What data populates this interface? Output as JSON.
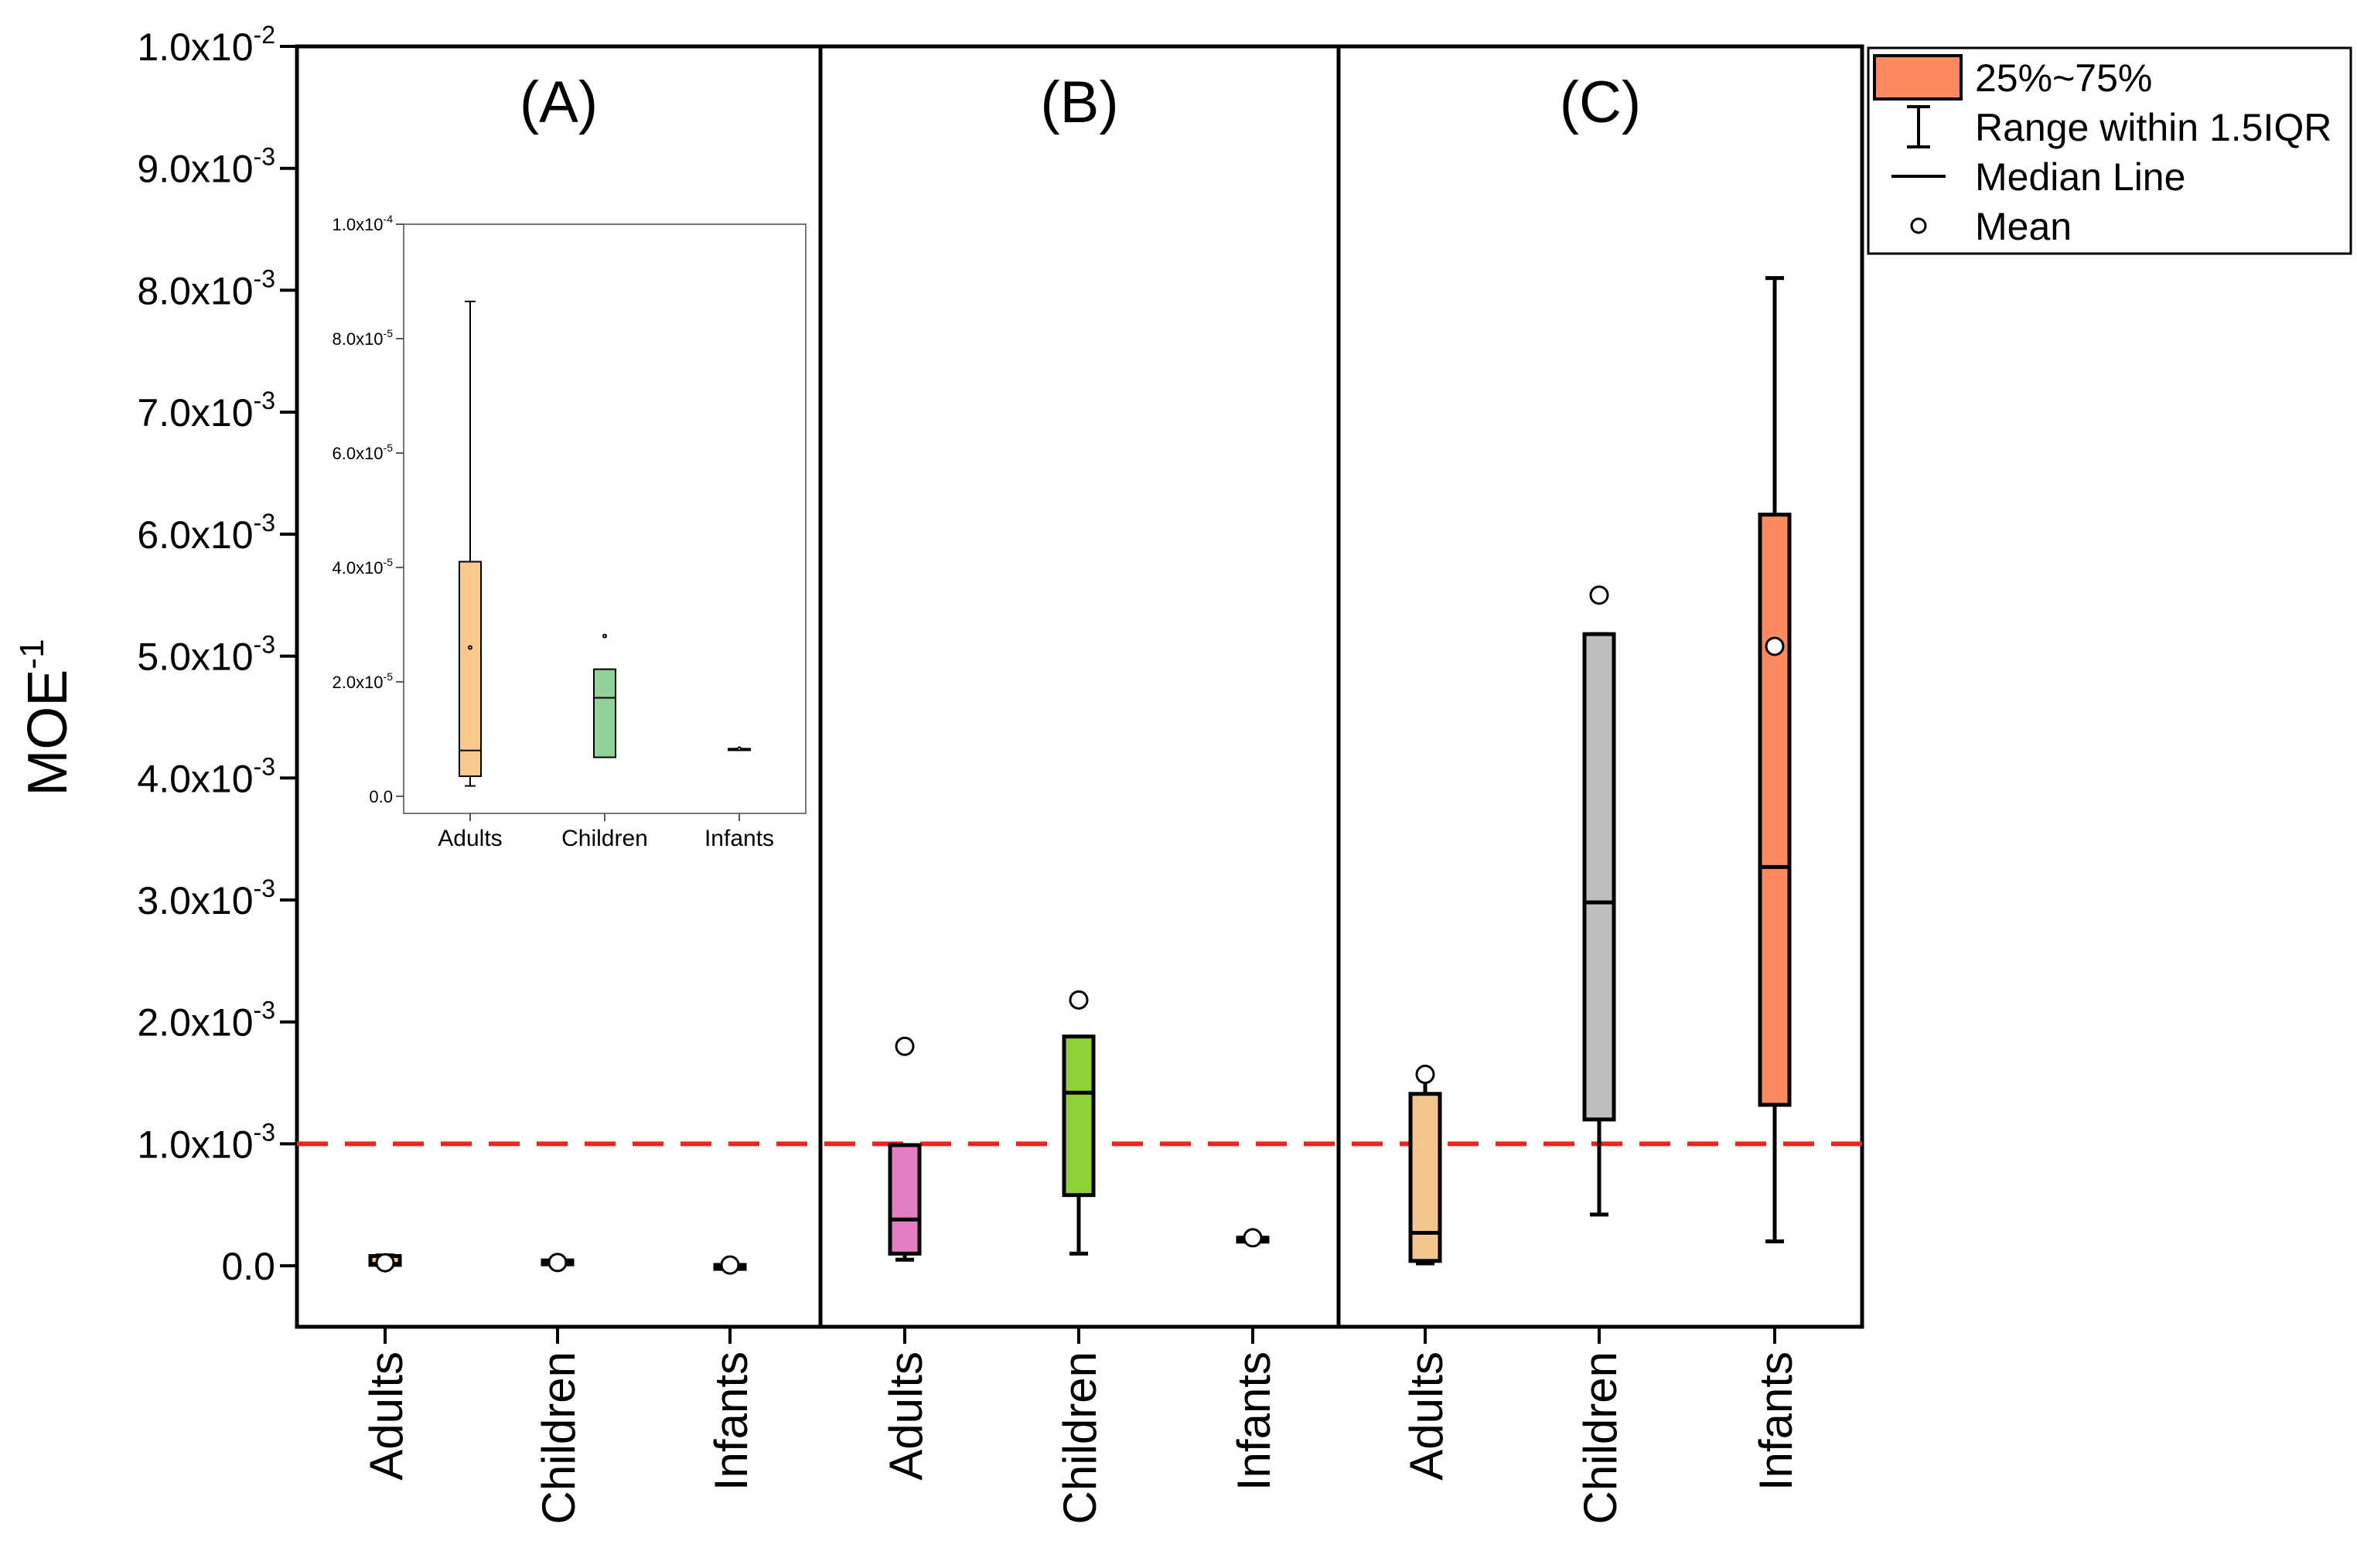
{
  "chart_data": {
    "type": "box",
    "ylabel": "MOE",
    "ylabel_superscript": "-1",
    "ylim": [
      -0.0005,
      0.01
    ],
    "yticks": [
      {
        "value": 0.0,
        "base": "0.0",
        "exp": ""
      },
      {
        "value": 0.001,
        "base": "1.0x10",
        "exp": "-3"
      },
      {
        "value": 0.002,
        "base": "2.0x10",
        "exp": "-3"
      },
      {
        "value": 0.003,
        "base": "3.0x10",
        "exp": "-3"
      },
      {
        "value": 0.004,
        "base": "4.0x10",
        "exp": "-3"
      },
      {
        "value": 0.005,
        "base": "5.0x10",
        "exp": "-3"
      },
      {
        "value": 0.006,
        "base": "6.0x10",
        "exp": "-3"
      },
      {
        "value": 0.007,
        "base": "7.0x10",
        "exp": "-3"
      },
      {
        "value": 0.008,
        "base": "8.0x10",
        "exp": "-3"
      },
      {
        "value": 0.009,
        "base": "9.0x10",
        "exp": "-3"
      },
      {
        "value": 0.01,
        "base": "1.0x10",
        "exp": "-2"
      }
    ],
    "threshold": {
      "value": 0.001,
      "color": "#e8261e",
      "style": "dashed"
    },
    "panels": [
      {
        "label": "(A)",
        "groups": [
          {
            "name": "Adults",
            "color": "#f9c98e",
            "whisker_low": 5e-06,
            "q1": 8e-06,
            "median": 1.5e-05,
            "q3": 8e-05,
            "whisker_high": 8.5e-05,
            "mean": 2.5e-05
          },
          {
            "name": "Children",
            "color": "#93d19a",
            "whisker_low": 1.3e-05,
            "q1": 1.3e-05,
            "median": 3.4e-05,
            "q3": 4.4e-05,
            "whisker_high": 4.4e-05,
            "mean": 2.7e-05
          },
          {
            "name": "Infants",
            "color": "#cccccc",
            "whisker_low": 6.5e-06,
            "q1": 6.5e-06,
            "median": 6.5e-06,
            "q3": 6.5e-06,
            "whisker_high": 6.5e-06,
            "mean": 6.5e-06
          }
        ]
      },
      {
        "label": "(B)",
        "groups": [
          {
            "name": "Adults",
            "color": "#e47dc4",
            "whisker_low": 5e-05,
            "q1": 0.0001,
            "median": 0.00038,
            "q3": 0.00099,
            "whisker_high": 0.00099,
            "mean": 0.0018
          },
          {
            "name": "Children",
            "color": "#8ed23a",
            "whisker_low": 0.0001,
            "q1": 0.00058,
            "median": 0.00142,
            "q3": 0.00188,
            "whisker_high": 0.00188,
            "mean": 0.00218
          },
          {
            "name": "Infants",
            "color": "#cccccc",
            "whisker_low": 0.00023,
            "q1": 0.00023,
            "median": 0.00023,
            "q3": 0.00023,
            "whisker_high": 0.00023,
            "mean": 0.00023
          }
        ]
      },
      {
        "label": "(C)",
        "groups": [
          {
            "name": "Adults",
            "color": "#f2c58f",
            "whisker_low": 2e-05,
            "q1": 4e-05,
            "median": 0.00027,
            "q3": 0.00141,
            "whisker_high": 0.00157,
            "mean": 0.00157
          },
          {
            "name": "Children",
            "color": "#bebebe",
            "whisker_low": 0.00042,
            "q1": 0.0012,
            "median": 0.00298,
            "q3": 0.00518,
            "whisker_high": 0.00518,
            "mean": 0.0055
          },
          {
            "name": "Infants",
            "color": "#fb8a5e",
            "whisker_low": 0.0002,
            "q1": 0.00132,
            "median": 0.00327,
            "q3": 0.00616,
            "whisker_high": 0.0081,
            "mean": 0.00508
          }
        ]
      }
    ],
    "inset": {
      "panel": "(A)",
      "ylim": [
        -3e-06,
        0.0001
      ],
      "yticks": [
        {
          "value": 0.0,
          "base": "0.0",
          "exp": ""
        },
        {
          "value": 2e-05,
          "base": "2.0x10",
          "exp": "-5"
        },
        {
          "value": 4e-05,
          "base": "4.0x10",
          "exp": "-5"
        },
        {
          "value": 6e-05,
          "base": "6.0x10",
          "exp": "-5"
        },
        {
          "value": 8e-05,
          "base": "8.0x10",
          "exp": "-5"
        },
        {
          "value": 0.0001,
          "base": "1.0x10",
          "exp": "-4"
        }
      ],
      "groups": [
        {
          "name": "Adults",
          "color": "#f9c98e",
          "whisker_low": 1.8e-06,
          "q1": 3.5e-06,
          "median": 8e-06,
          "q3": 4.1e-05,
          "whisker_high": 8.65e-05,
          "mean": 2.6e-05
        },
        {
          "name": "Children",
          "color": "#93d19a",
          "whisker_low": 6.8e-06,
          "q1": 6.8e-06,
          "median": 1.72e-05,
          "q3": 2.22e-05,
          "whisker_high": 2.22e-05,
          "mean": 2.8e-05
        },
        {
          "name": "Infants",
          "color": "#cccccc",
          "whisker_low": 8.3e-06,
          "q1": 8.3e-06,
          "median": 8.3e-06,
          "q3": 8.3e-06,
          "whisker_high": 8.3e-06,
          "mean": 8.3e-06
        }
      ]
    },
    "legend": {
      "position": "top-right",
      "items": [
        {
          "symbol": "box",
          "label": "25%~75%",
          "color": "#fb8a5e"
        },
        {
          "symbol": "whisker",
          "label": "Range within 1.5IQR"
        },
        {
          "symbol": "median",
          "label": "Median Line"
        },
        {
          "symbol": "mean",
          "label": "Mean"
        }
      ]
    }
  }
}
